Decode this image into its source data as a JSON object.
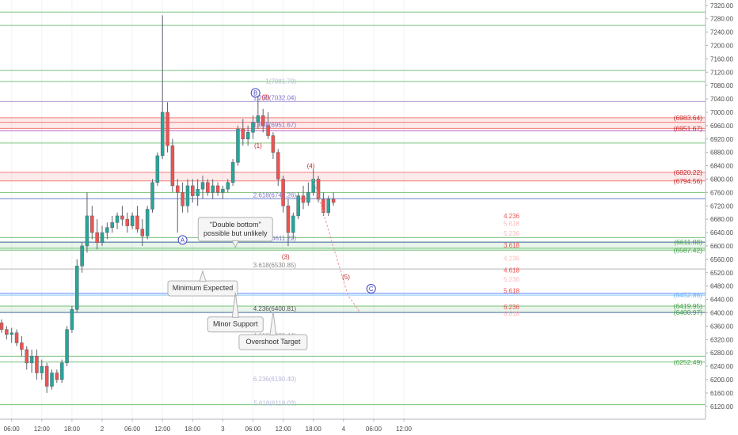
{
  "chart_data": {
    "type": "candlestick",
    "title": "",
    "price_axis": {
      "min": 6100,
      "max": 7340,
      "step": 40,
      "range": [
        6100,
        7340
      ]
    },
    "time_axis": {
      "ticks": [
        {
          "label": "06:00",
          "t": 2
        },
        {
          "label": "12:00",
          "t": 8
        },
        {
          "label": "18:00",
          "t": 14
        },
        {
          "label": "2",
          "t": 20
        },
        {
          "label": "06:00",
          "t": 26
        },
        {
          "label": "12:00",
          "t": 32
        },
        {
          "label": "18:00",
          "t": 38
        },
        {
          "label": "3",
          "t": 44
        },
        {
          "label": "06:00",
          "t": 50
        },
        {
          "label": "12:00",
          "t": 56
        },
        {
          "label": "18:00",
          "t": 62
        },
        {
          "label": "4",
          "t": 68
        },
        {
          "label": "06:00",
          "t": 74
        },
        {
          "label": "12:00",
          "t": 80
        }
      ]
    },
    "candles": [
      [
        0,
        6370,
        6380,
        6340,
        6350
      ],
      [
        1,
        6350,
        6360,
        6320,
        6335
      ],
      [
        2,
        6335,
        6355,
        6310,
        6340
      ],
      [
        3,
        6340,
        6350,
        6300,
        6310
      ],
      [
        4,
        6310,
        6330,
        6270,
        6290
      ],
      [
        5,
        6290,
        6300,
        6230,
        6250
      ],
      [
        6,
        6250,
        6290,
        6220,
        6270
      ],
      [
        7,
        6270,
        6290,
        6200,
        6220
      ],
      [
        8,
        6220,
        6260,
        6200,
        6240
      ],
      [
        9,
        6240,
        6250,
        6160,
        6180
      ],
      [
        10,
        6180,
        6230,
        6170,
        6220
      ],
      [
        11,
        6220,
        6230,
        6190,
        6200
      ],
      [
        12,
        6200,
        6260,
        6190,
        6250
      ],
      [
        13,
        6250,
        6360,
        6240,
        6350
      ],
      [
        14,
        6350,
        6420,
        6340,
        6410
      ],
      [
        15,
        6410,
        6560,
        6400,
        6540
      ],
      [
        16,
        6540,
        6610,
        6520,
        6600
      ],
      [
        17,
        6600,
        6760,
        6580,
        6690
      ],
      [
        18,
        6690,
        6720,
        6620,
        6640
      ],
      [
        19,
        6640,
        6680,
        6590,
        6610
      ],
      [
        20,
        6610,
        6660,
        6600,
        6640
      ],
      [
        21,
        6640,
        6670,
        6620,
        6655
      ],
      [
        22,
        6655,
        6690,
        6640,
        6670
      ],
      [
        23,
        6670,
        6700,
        6650,
        6690
      ],
      [
        24,
        6690,
        6720,
        6660,
        6680
      ],
      [
        25,
        6680,
        6700,
        6640,
        6660
      ],
      [
        26,
        6660,
        6700,
        6650,
        6690
      ],
      [
        27,
        6690,
        6720,
        6640,
        6650
      ],
      [
        28,
        6650,
        6680,
        6600,
        6630
      ],
      [
        29,
        6630,
        6720,
        6620,
        6710
      ],
      [
        30,
        6710,
        6800,
        6700,
        6790
      ],
      [
        31,
        6790,
        6880,
        6780,
        6870
      ],
      [
        32,
        6870,
        7290,
        6860,
        7000
      ],
      [
        33,
        7000,
        7030,
        6880,
        6900
      ],
      [
        34,
        6900,
        6920,
        6760,
        6780
      ],
      [
        35,
        6780,
        6800,
        6640,
        6760
      ],
      [
        36,
        6760,
        6790,
        6700,
        6720
      ],
      [
        37,
        6720,
        6800,
        6700,
        6780
      ],
      [
        38,
        6780,
        6800,
        6730,
        6750
      ],
      [
        39,
        6750,
        6800,
        6720,
        6770
      ],
      [
        40,
        6770,
        6810,
        6740,
        6790
      ],
      [
        41,
        6790,
        6800,
        6750,
        6760
      ],
      [
        42,
        6760,
        6800,
        6740,
        6780
      ],
      [
        43,
        6780,
        6790,
        6750,
        6760
      ],
      [
        44,
        6760,
        6780,
        6740,
        6770
      ],
      [
        45,
        6770,
        6800,
        6760,
        6790
      ],
      [
        46,
        6790,
        6860,
        6780,
        6850
      ],
      [
        47,
        6850,
        6960,
        6840,
        6950
      ],
      [
        48,
        6950,
        6980,
        6900,
        6920
      ],
      [
        49,
        6920,
        6960,
        6900,
        6940
      ],
      [
        50,
        6940,
        6990,
        6920,
        6970
      ],
      [
        51,
        6970,
        7050,
        6950,
        6990
      ],
      [
        52,
        6990,
        7010,
        6940,
        6960
      ],
      [
        53,
        6960,
        7000,
        6920,
        6930
      ],
      [
        54,
        6930,
        6940,
        6860,
        6880
      ],
      [
        55,
        6880,
        6890,
        6780,
        6800
      ],
      [
        56,
        6800,
        6810,
        6700,
        6720
      ],
      [
        57,
        6720,
        6740,
        6600,
        6640
      ],
      [
        58,
        6640,
        6700,
        6620,
        6690
      ],
      [
        59,
        6690,
        6760,
        6680,
        6750
      ],
      [
        60,
        6750,
        6780,
        6710,
        6730
      ],
      [
        61,
        6730,
        6790,
        6720,
        6760
      ],
      [
        62,
        6760,
        6830,
        6750,
        6800
      ],
      [
        63,
        6800,
        6810,
        6730,
        6740
      ],
      [
        64,
        6740,
        6760,
        6690,
        6700
      ],
      [
        65,
        6700,
        6750,
        6690,
        6740
      ],
      [
        66,
        6740,
        6760,
        6720,
        6730
      ]
    ],
    "horizontal_lines": [
      {
        "price": 7300,
        "color": "#4caf50"
      },
      {
        "price": 7260,
        "color": "#4caf50"
      },
      {
        "price": 7125,
        "color": "#4caf50"
      },
      {
        "price": 7092,
        "color": "#4caf50"
      },
      {
        "price": 7032.04,
        "color": "#9575cd"
      },
      {
        "price": 6983.64,
        "color": "#ef5350"
      },
      {
        "price": 6970,
        "color": "#ef5350"
      },
      {
        "price": 6951.67,
        "color": "#ef5350"
      },
      {
        "price": 6945,
        "color": "#9c27b0"
      },
      {
        "price": 6908,
        "color": "#4caf50"
      },
      {
        "price": 6820.22,
        "color": "#ef5350"
      },
      {
        "price": 6794.56,
        "color": "#ef5350"
      },
      {
        "price": 6760,
        "color": "#4caf50"
      },
      {
        "price": 6741.26,
        "color": "#3f51b5"
      },
      {
        "price": 6625,
        "color": "#4caf50"
      },
      {
        "price": 6611.88,
        "color": "#4caf50"
      },
      {
        "price": 6611.22,
        "color": "#3f51b5"
      },
      {
        "price": 6593,
        "color": "#4caf50"
      },
      {
        "price": 6587.42,
        "color": "#4caf50"
      },
      {
        "price": 6530.85,
        "color": "#9e9e9e"
      },
      {
        "price": 6458,
        "color": "#2962ff"
      },
      {
        "price": 6452.86,
        "color": "#64b5f6"
      },
      {
        "price": 6419.95,
        "color": "#4caf50"
      },
      {
        "price": 6400.97,
        "color": "#4caf50"
      },
      {
        "price": 6400.81,
        "color": "#3f51b5"
      },
      {
        "price": 6270,
        "color": "#4caf50"
      },
      {
        "price": 6252.49,
        "color": "#4caf50"
      },
      {
        "price": 6125,
        "color": "#4caf50"
      }
    ],
    "zones": [
      {
        "from": 6951.67,
        "to": 6983.64,
        "color": "#ef5350"
      },
      {
        "from": 6794.56,
        "to": 6820.22,
        "color": "#ef5350"
      },
      {
        "from": 6587.42,
        "to": 6611.88,
        "color": "#4caf50"
      },
      {
        "from": 6400.97,
        "to": 6419.95,
        "color": "#4caf50"
      }
    ],
    "left_fib_labels": [
      {
        "text": "1(7081.70)",
        "price": 7081.7,
        "color": "#b8b8d8"
      },
      {
        "text": "1.236(7032.04)",
        "price": 7032.04,
        "color": "#7e6fc6"
      },
      {
        "text": "1.618(6951.67)",
        "price": 6951.67,
        "color": "#7e6fc6"
      },
      {
        "text": "2.618(6741.26)",
        "price": 6741.26,
        "color": "#7e6fc6"
      },
      {
        "text": "3.236(6611.22)",
        "price": 6611.22,
        "color": "#7e6fc6"
      },
      {
        "text": "3.618(6530.85)",
        "price": 6530.85,
        "color": "#888888"
      },
      {
        "text": "4.236(6400.81)",
        "price": 6400.81,
        "color": "#555555"
      },
      {
        "text": "4.618(6320.44)",
        "price": 6320.44,
        "color": "#aaaaaa"
      },
      {
        "text": "6.236(6190.40)",
        "price": 6190.4,
        "color": "#b8b8d8"
      },
      {
        "text": "5.618(6118.03)",
        "price": 6118.03,
        "color": "#b8b8d8"
      }
    ],
    "right_fib_labels": [
      {
        "text": "4.236",
        "price": 6690,
        "color": "#ef5350"
      },
      {
        "text": "5.618",
        "price": 6667,
        "color": "#f8bbbb"
      },
      {
        "text": "5.236",
        "price": 6638,
        "color": "#f8bbbb"
      },
      {
        "text": "3.618",
        "price": 6602,
        "color": "#ef5350"
      },
      {
        "text": "4.236",
        "price": 6563,
        "color": "#f8bbbb"
      },
      {
        "text": "4.618",
        "price": 6528,
        "color": "#ef5350"
      },
      {
        "text": "5.236",
        "price": 6500,
        "color": "#f8bbbb"
      },
      {
        "text": "5.618",
        "price": 6466,
        "color": "#ef5350"
      },
      {
        "text": "6.236",
        "price": 6418,
        "color": "#ef5350"
      },
      {
        "text": "6.618",
        "price": 6397,
        "color": "#f8bbbb"
      }
    ],
    "price_labels": [
      {
        "text": "(6983.64)",
        "price": 6983.64,
        "color": "#c62828"
      },
      {
        "text": "(6951.67)",
        "price": 6951.67,
        "color": "#c62828"
      },
      {
        "text": "(6820.22)",
        "price": 6820.22,
        "color": "#c62828"
      },
      {
        "text": "(6794.56)",
        "price": 6794.56,
        "color": "#c62828"
      },
      {
        "text": "(6611.88)",
        "price": 6611.88,
        "color": "#43a047"
      },
      {
        "text": "(6587.42)",
        "price": 6587.42,
        "color": "#43a047"
      },
      {
        "text": "(6452.86)",
        "price": 6452.86,
        "color": "#64b5f6"
      },
      {
        "text": "(6419.95)",
        "price": 6419.95,
        "color": "#43a047"
      },
      {
        "text": "(6400.97)",
        "price": 6400.97,
        "color": "#43a047"
      },
      {
        "text": "(6252.49)",
        "price": 6252.49,
        "color": "#43a047"
      }
    ],
    "wave_labels": [
      {
        "text": "A",
        "t": 36,
        "price": 6618,
        "circled": true,
        "color": "#3f3fbf"
      },
      {
        "text": "B",
        "t": 50.5,
        "price": 7058,
        "circled": true,
        "color": "#3f3fbf"
      },
      {
        "text": "C",
        "t": 73.5,
        "price": 6472,
        "circled": true,
        "color": "#3f3fbf"
      },
      {
        "text": "(1)",
        "t": 51,
        "price": 6900,
        "circled": false,
        "color": "#c62828"
      },
      {
        "text": "(2)",
        "t": 52.5,
        "price": 7046,
        "circled": false,
        "color": "#c62828"
      },
      {
        "text": "(3)",
        "t": 56.5,
        "price": 6568,
        "circled": false,
        "color": "#c62828"
      },
      {
        "text": "(4)",
        "t": 61.5,
        "price": 6840,
        "circled": false,
        "color": "#c62828"
      },
      {
        "text": "(5)",
        "t": 68.5,
        "price": 6508,
        "circled": false,
        "color": "#c62828"
      }
    ],
    "projection": [
      [
        62,
        6800
      ],
      [
        68.8,
        6455
      ],
      [
        71.3,
        6400
      ]
    ],
    "annotations": [
      {
        "text": [
          "\"Double bottom\"",
          "possible but unlikely"
        ],
        "t": 46.5,
        "price": 6650,
        "width": 94,
        "pointer": {
          "t": 46.5,
          "price": 6596
        }
      },
      {
        "text": [
          "Minimum Expected"
        ],
        "t": 40,
        "price": 6473,
        "width": 88,
        "pointer": {
          "t": 40,
          "price": 6525
        }
      },
      {
        "text": [
          "Minor Support"
        ],
        "t": 46.5,
        "price": 6365,
        "width": 70,
        "pointer": {
          "t": 46.5,
          "price": 6460
        }
      },
      {
        "text": [
          "Overshoot Target"
        ],
        "t": 54,
        "price": 6312,
        "width": 86,
        "pointer": {
          "t": 54,
          "price": 6403
        }
      }
    ]
  }
}
